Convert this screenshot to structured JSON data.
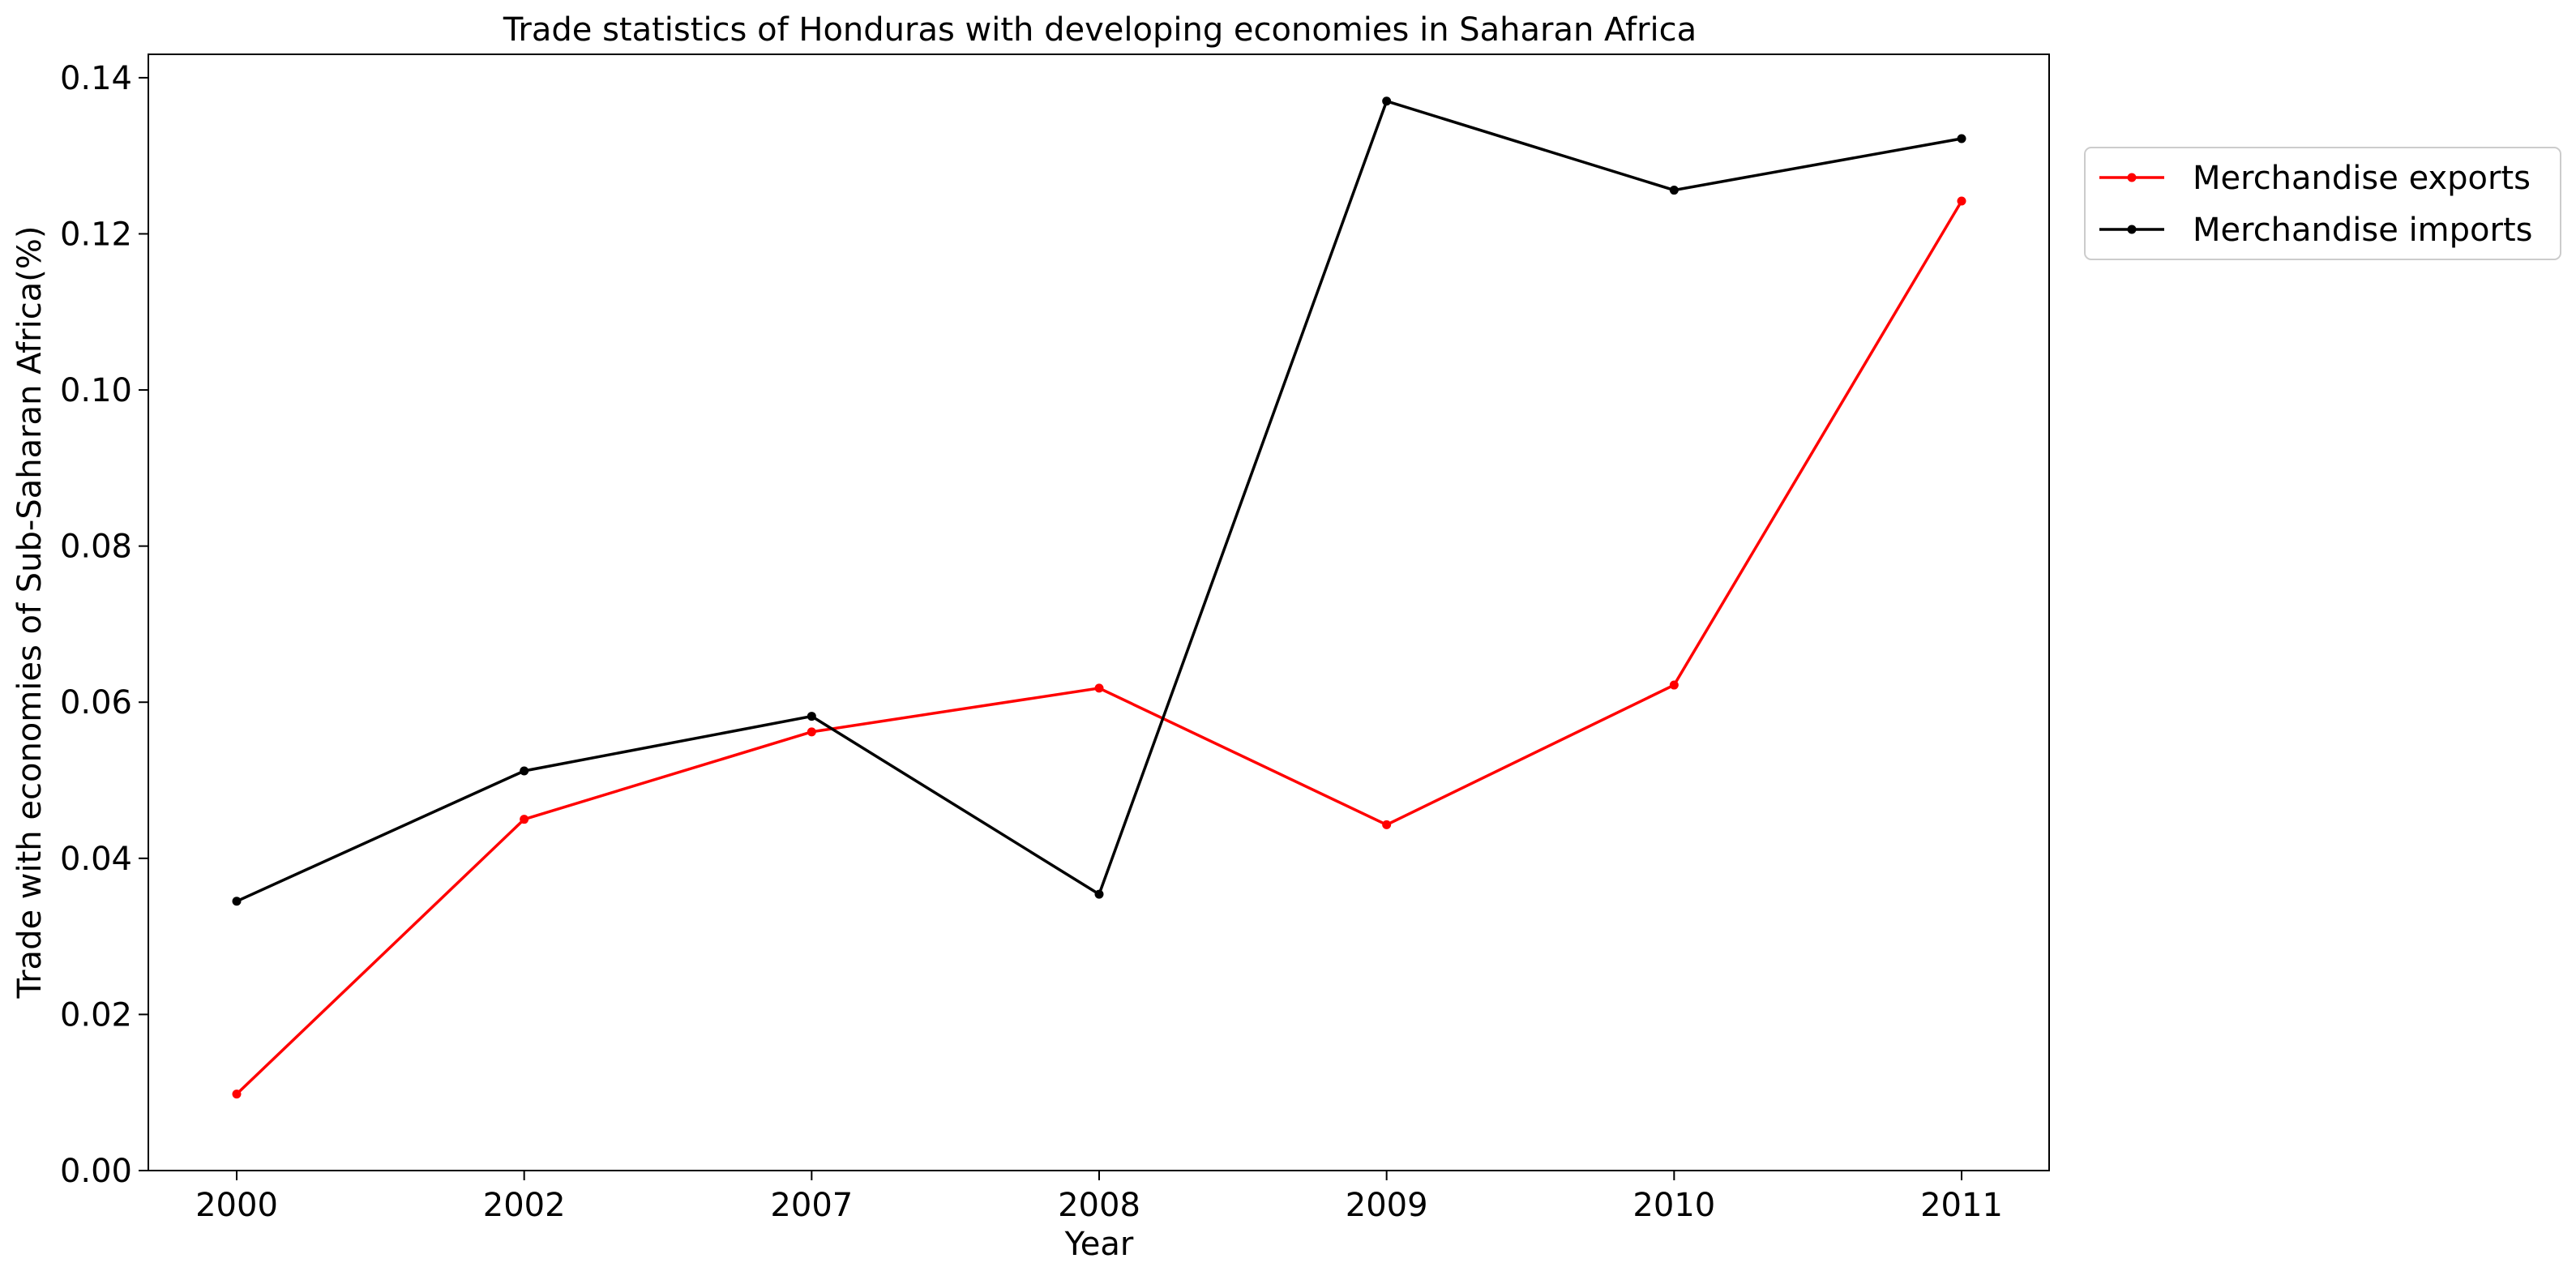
{
  "chart_data": {
    "type": "line",
    "title": "Trade statistics of Honduras with developing economies in Saharan Africa",
    "xlabel": "Year",
    "ylabel": "Trade with economies of Sub-Saharan Africa(%)",
    "categories": [
      "2000",
      "2002",
      "2007",
      "2008",
      "2009",
      "2010",
      "2011"
    ],
    "ylim": [
      0,
      0.143
    ],
    "yticks": [
      0.0,
      0.02,
      0.04,
      0.06,
      0.08,
      0.1,
      0.12,
      0.14
    ],
    "ytick_labels": [
      "0.00",
      "0.02",
      "0.04",
      "0.06",
      "0.08",
      "0.10",
      "0.12",
      "0.14"
    ],
    "grid": false,
    "legend_position": "outside-top-right",
    "series": [
      {
        "name": "Merchandise exports",
        "color": "#ff0000",
        "values": [
          0.0098,
          0.045,
          0.0562,
          0.0618,
          0.0443,
          0.0622,
          0.1242
        ]
      },
      {
        "name": "Merchandise imports",
        "color": "#000000",
        "values": [
          0.0345,
          0.0512,
          0.0582,
          0.0354,
          0.137,
          0.1256,
          0.1322
        ]
      }
    ]
  }
}
